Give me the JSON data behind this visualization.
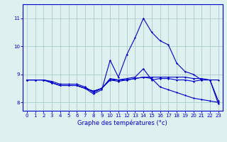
{
  "hours": [
    0,
    1,
    2,
    3,
    4,
    5,
    6,
    7,
    8,
    9,
    10,
    11,
    12,
    13,
    14,
    15,
    16,
    17,
    18,
    19,
    20,
    21,
    22,
    23
  ],
  "line1": [
    8.8,
    8.8,
    8.8,
    8.7,
    8.6,
    8.6,
    8.6,
    8.5,
    8.4,
    8.5,
    8.8,
    8.8,
    8.8,
    8.85,
    8.9,
    8.9,
    8.9,
    8.9,
    8.9,
    8.9,
    8.85,
    8.85,
    8.8,
    8.8
  ],
  "line2": [
    8.8,
    8.8,
    8.8,
    8.7,
    8.6,
    8.6,
    8.6,
    8.5,
    8.3,
    8.45,
    9.5,
    8.9,
    9.7,
    10.3,
    11.0,
    10.5,
    10.2,
    10.05,
    9.4,
    9.1,
    9.0,
    8.8,
    8.8,
    7.95
  ],
  "line3": [
    8.8,
    8.8,
    8.8,
    8.7,
    8.6,
    8.6,
    8.6,
    8.5,
    8.4,
    8.5,
    8.85,
    8.8,
    8.85,
    8.9,
    9.2,
    8.8,
    8.85,
    8.85,
    8.8,
    8.8,
    8.75,
    8.8,
    8.8,
    8.05
  ],
  "line4": [
    8.8,
    8.8,
    8.8,
    8.75,
    8.65,
    8.65,
    8.65,
    8.55,
    8.35,
    8.5,
    8.8,
    8.75,
    8.8,
    8.85,
    8.9,
    8.85,
    8.55,
    8.45,
    8.35,
    8.25,
    8.15,
    8.1,
    8.05,
    8.0
  ],
  "bg_color": "#dff0f0",
  "line_color": "#0000cc",
  "grid_color": "#aacccc",
  "xlabel": "Graphe des températures (°c)",
  "ylabel_ticks": [
    8,
    9,
    10,
    11
  ],
  "ylim": [
    7.7,
    11.5
  ],
  "xlim": [
    -0.5,
    23.5
  ]
}
